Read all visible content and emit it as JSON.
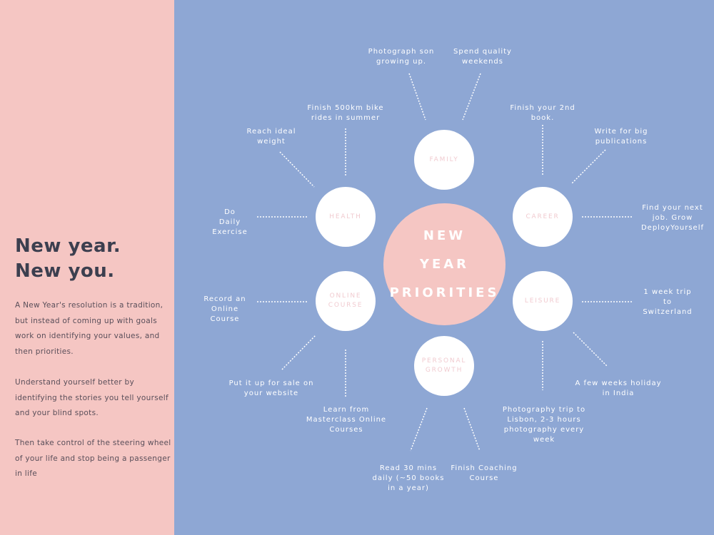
{
  "left_panel": {
    "headline_1": "New year.",
    "headline_2": "New you.",
    "paragraph_1": "A New Year's resolution is a tradition, but instead of coming up with goals work on identifying your values, and then priorities.",
    "paragraph_2": "Understand yourself better by identifying the stories you tell yourself and your blind spots.",
    "paragraph_3": "Then take control of the steering wheel of your life and stop being  a passenger in life"
  },
  "colors": {
    "pink": "#f5c6c3",
    "blue": "#8ea7d4",
    "white": "#ffffff",
    "dark_text": "#3c3f4f"
  },
  "diagram": {
    "center": "NEW\nYEAR\nPRIORITIES",
    "categories": {
      "family": "FAMILY",
      "health": "HEALTH",
      "career": "CAREER",
      "online_course": "ONLINE COURSE",
      "leisure": "LEISURE",
      "personal_growth": "PERSONAL GROWTH"
    },
    "goals": {
      "photograph_son": "Photograph son\ngrowing up.",
      "spend_weekends": "Spend quality\nweekends",
      "bike_rides": "Finish 500km bike\nrides in summer",
      "second_book": "Finish your 2nd\nbook.",
      "ideal_weight": "Reach ideal\nweight",
      "write_publications": "Write for big\npublications",
      "daily_exercise": "Do\nDaily\nExercise",
      "next_job": "Find your next\njob. Grow\nDeployYourself",
      "record_course": "Record an\nOnline\nCourse",
      "switzerland": "1 week trip to\nSwitzerland",
      "sell_website": "Put it up for sale on\nyour website",
      "india": "A few weeks holiday\nin India",
      "masterclass": "Learn from\nMasterclass Online\nCourses",
      "lisbon": "Photography trip to\nLisbon, 2-3 hours\nphotography every\nweek",
      "read_books": "Read 30 mins\ndaily (~50 books\nin a year)",
      "coaching": "Finish Coaching\nCourse"
    }
  }
}
